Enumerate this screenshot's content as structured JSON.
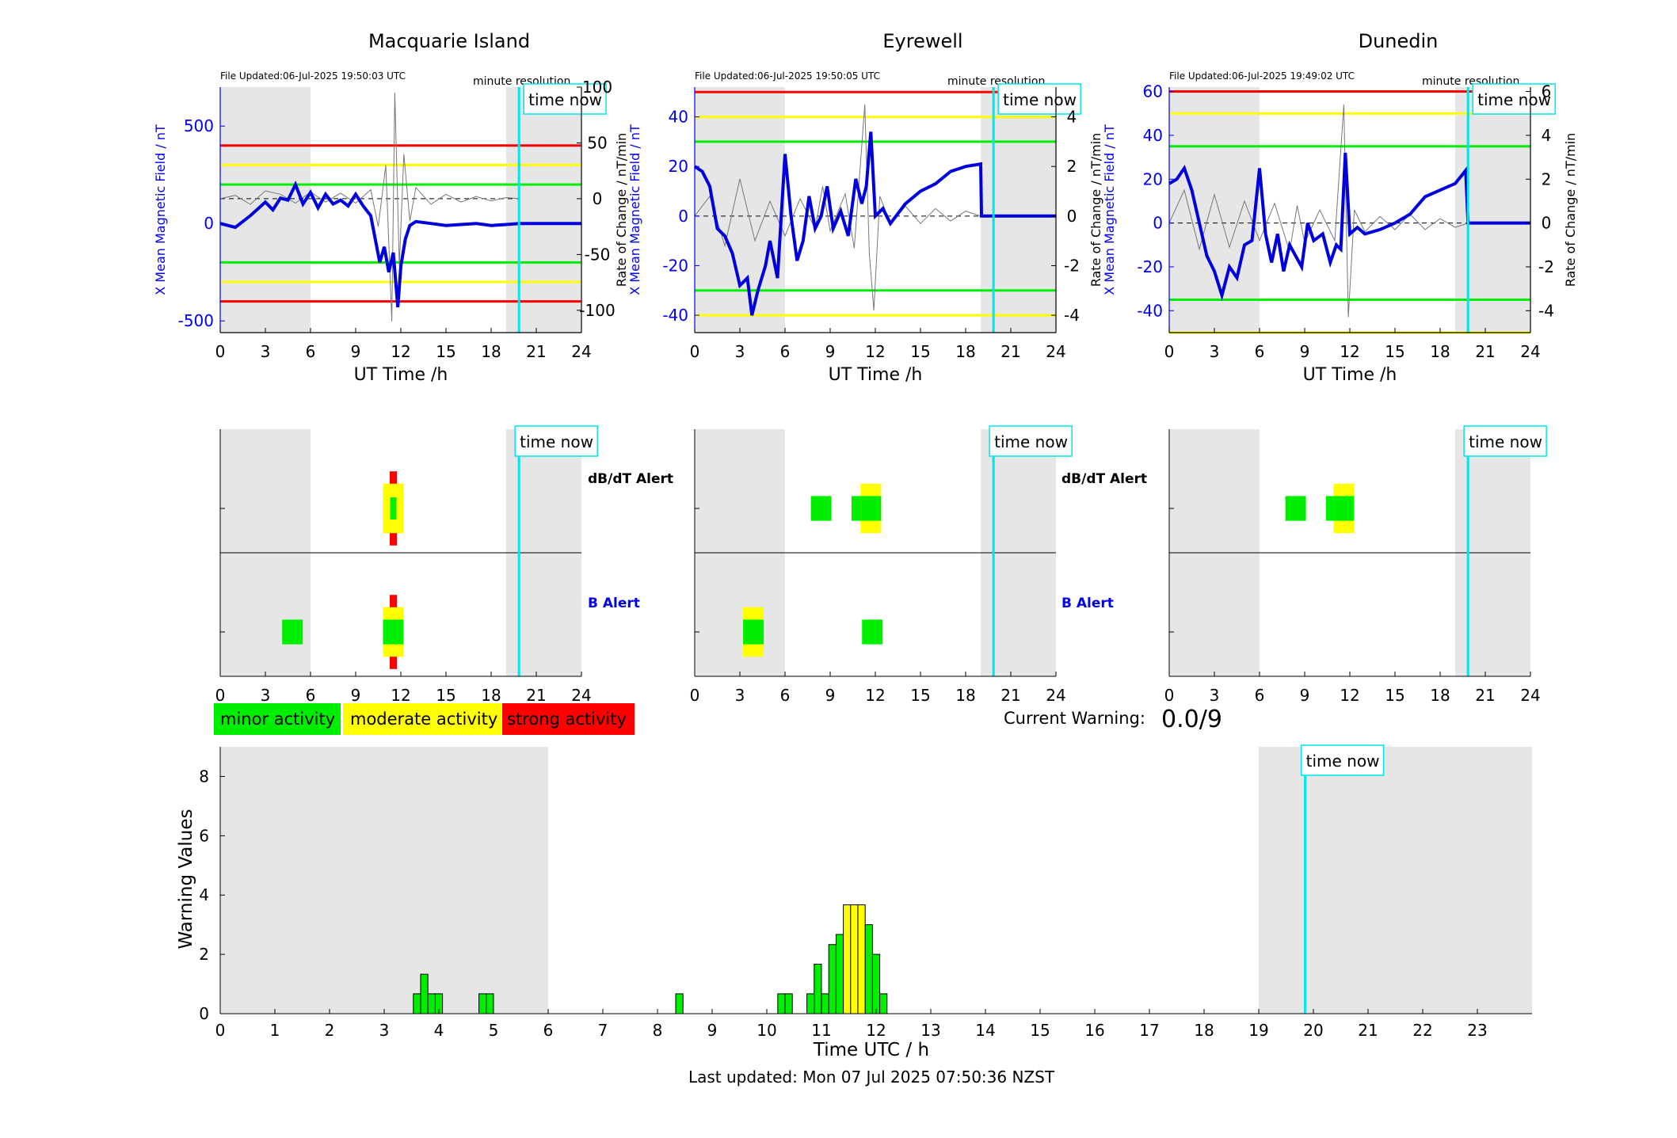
{
  "figure": {
    "time_now_label": "time now",
    "time_now_hour": 19.85,
    "current_warning_label": "Current Warning:",
    "current_warning_value": "0.0/9",
    "last_updated": "Last updated: Mon 07 Jul 2025 07:50:36 NZST",
    "colors": {
      "minor": "#00ee00",
      "moderate": "#ffff00",
      "strong": "#ff0000",
      "shade": "#e6e6e6",
      "time_now": "#00e5ee",
      "mean_line": "#0000dd"
    }
  },
  "legend": [
    {
      "label": "minor activity",
      "color": "#00ee00"
    },
    {
      "label": "moderate activity",
      "color": "#ffff00"
    },
    {
      "label": "strong activity",
      "color": "#ff0000"
    }
  ],
  "stations": [
    {
      "name": "Macquarie Island",
      "file_updated": "File Updated:06-Jul-2025 19:50:03 UTC",
      "resolution": "minute resolution",
      "ylabel_left": "X Mean Magnetic Field / nT",
      "ylabel_right": "Rate of Change / nT/min",
      "xlabel": "UT Time /h",
      "left_ticks": [
        "500",
        "0",
        "-500"
      ],
      "right_ticks": [
        "100",
        "50",
        "0",
        "-50",
        "-100"
      ],
      "ylim_left": [
        -560,
        700
      ],
      "ylim_right": [
        -120,
        100
      ],
      "shade_hours": [
        [
          0,
          6
        ],
        [
          19,
          24
        ]
      ],
      "shade_ylim": [
        -700,
        700
      ],
      "threshold_lines_nT": [
        {
          "value": 400,
          "color": "#ff0000"
        },
        {
          "value": 300,
          "color": "#ffff00"
        },
        {
          "value": 200,
          "color": "#00ee00"
        },
        {
          "value": -200,
          "color": "#00ee00"
        },
        {
          "value": -300,
          "color": "#ffff00"
        },
        {
          "value": -400,
          "color": "#ff0000"
        }
      ],
      "mean_field_nT": [
        [
          0,
          0
        ],
        [
          1,
          -20
        ],
        [
          2,
          40
        ],
        [
          3,
          110
        ],
        [
          3.5,
          70
        ],
        [
          4,
          130
        ],
        [
          4.5,
          120
        ],
        [
          5,
          200
        ],
        [
          5.5,
          100
        ],
        [
          6,
          160
        ],
        [
          6.5,
          80
        ],
        [
          7,
          150
        ],
        [
          7.5,
          100
        ],
        [
          8,
          120
        ],
        [
          8.5,
          90
        ],
        [
          9,
          150
        ],
        [
          9.5,
          90
        ],
        [
          10,
          40
        ],
        [
          10.3,
          -80
        ],
        [
          10.6,
          -200
        ],
        [
          10.9,
          -120
        ],
        [
          11.2,
          -250
        ],
        [
          11.5,
          -150
        ],
        [
          11.8,
          -430
        ],
        [
          12,
          -220
        ],
        [
          12.3,
          -80
        ],
        [
          12.6,
          -10
        ],
        [
          13,
          10
        ],
        [
          14,
          0
        ],
        [
          15,
          -10
        ],
        [
          17,
          0
        ],
        [
          18,
          -10
        ],
        [
          19,
          -5
        ],
        [
          19.85,
          0
        ],
        [
          24,
          0
        ]
      ],
      "rate_of_change": [
        [
          0,
          0
        ],
        [
          1,
          3
        ],
        [
          2,
          -5
        ],
        [
          3,
          7
        ],
        [
          4,
          4
        ],
        [
          5,
          -4
        ],
        [
          6,
          6
        ],
        [
          7,
          -3
        ],
        [
          8,
          5
        ],
        [
          9,
          -4
        ],
        [
          10,
          8
        ],
        [
          10.5,
          -25
        ],
        [
          11,
          30
        ],
        [
          11.4,
          -110
        ],
        [
          11.6,
          95
        ],
        [
          11.9,
          -60
        ],
        [
          12.2,
          40
        ],
        [
          12.6,
          -20
        ],
        [
          13,
          10
        ],
        [
          14,
          -5
        ],
        [
          15,
          4
        ],
        [
          16,
          -3
        ],
        [
          17,
          2
        ],
        [
          18,
          -2
        ],
        [
          19,
          1
        ],
        [
          19.85,
          0
        ]
      ],
      "dbdt_alert": [
        {
          "hour": 11.5,
          "level": "strong",
          "ymin": -0.6,
          "ymax": 0.6
        },
        {
          "hour": 11.5,
          "level": "moderate",
          "ymin": -0.4,
          "ymax": 0.4
        },
        {
          "hour": 11.5,
          "level": "minor",
          "ymin": -0.18,
          "ymax": 0.18
        }
      ],
      "b_alert": [
        {
          "hour": 4.8,
          "level": "minor",
          "ymin": -0.2,
          "ymax": 0.2
        },
        {
          "hour": 11.5,
          "level": "strong",
          "ymin": -0.6,
          "ymax": 0.6
        },
        {
          "hour": 11.5,
          "level": "moderate",
          "ymin": -0.4,
          "ymax": 0.4
        },
        {
          "hour": 11.5,
          "level": "minor",
          "ymin": -0.2,
          "ymax": 0.2
        }
      ]
    },
    {
      "name": "Eyrewell",
      "file_updated": "File Updated:06-Jul-2025 19:50:05 UTC",
      "resolution": "minute resolution",
      "ylabel_left": "X Mean Magnetic Field / nT",
      "ylabel_right": "Rate of Change / nT/min",
      "xlabel": "UT Time /h",
      "left_ticks": [
        "40",
        "20",
        "0",
        "-20",
        "-40"
      ],
      "right_ticks": [
        "4",
        "2",
        "0",
        "-2",
        "-4"
      ],
      "ylim_left": [
        -47,
        52
      ],
      "ylim_right": [
        -4.7,
        5.2
      ],
      "shade_hours": [
        [
          0,
          6
        ],
        [
          19,
          24
        ]
      ],
      "shade_ylim": [
        -47,
        52
      ],
      "threshold_lines_nT": [
        {
          "value": 50,
          "color": "#ff0000"
        },
        {
          "value": 40,
          "color": "#ffff00"
        },
        {
          "value": 30,
          "color": "#00ee00"
        },
        {
          "value": -30,
          "color": "#00ee00"
        },
        {
          "value": -40,
          "color": "#ffff00"
        }
      ],
      "mean_field_nT": [
        [
          0,
          20
        ],
        [
          0.5,
          18
        ],
        [
          1,
          12
        ],
        [
          1.5,
          -5
        ],
        [
          2,
          -8
        ],
        [
          2.5,
          -15
        ],
        [
          3,
          -28
        ],
        [
          3.5,
          -25
        ],
        [
          3.8,
          -40
        ],
        [
          4.2,
          -30
        ],
        [
          4.7,
          -20
        ],
        [
          5,
          -10
        ],
        [
          5.5,
          -25
        ],
        [
          6,
          25
        ],
        [
          6.4,
          0
        ],
        [
          6.8,
          -18
        ],
        [
          7.2,
          -10
        ],
        [
          7.6,
          8
        ],
        [
          8,
          -5
        ],
        [
          8.4,
          0
        ],
        [
          8.8,
          12
        ],
        [
          9.2,
          -5
        ],
        [
          9.7,
          2
        ],
        [
          10.2,
          -8
        ],
        [
          10.7,
          15
        ],
        [
          11.1,
          5
        ],
        [
          11.4,
          12
        ],
        [
          11.7,
          34
        ],
        [
          12,
          0
        ],
        [
          12.5,
          3
        ],
        [
          13,
          -3
        ],
        [
          14,
          5
        ],
        [
          15,
          10
        ],
        [
          16,
          13
        ],
        [
          17,
          18
        ],
        [
          18,
          20
        ],
        [
          19,
          21
        ],
        [
          19.05,
          0
        ],
        [
          24,
          0
        ]
      ],
      "rate_of_change": [
        [
          0,
          0
        ],
        [
          1,
          0.8
        ],
        [
          2,
          -1.2
        ],
        [
          3,
          1.5
        ],
        [
          4,
          -1
        ],
        [
          5,
          0.6
        ],
        [
          6,
          -0.8
        ],
        [
          7,
          0.7
        ],
        [
          8,
          -0.5
        ],
        [
          8.5,
          1.2
        ],
        [
          9,
          -0.6
        ],
        [
          10,
          0.9
        ],
        [
          10.6,
          -1.3
        ],
        [
          11.3,
          4.5
        ],
        [
          11.6,
          -1.5
        ],
        [
          11.9,
          -3.8
        ],
        [
          12.3,
          0.8
        ],
        [
          13,
          -0.3
        ],
        [
          14,
          0.4
        ],
        [
          15,
          -0.3
        ],
        [
          16,
          0.3
        ],
        [
          17,
          -0.2
        ],
        [
          18,
          0.2
        ],
        [
          19,
          0
        ]
      ],
      "dbdt_alert": [
        {
          "hour": 8.4,
          "level": "minor",
          "ymin": -0.2,
          "ymax": 0.2
        },
        {
          "hour": 11.1,
          "level": "minor",
          "ymin": -0.2,
          "ymax": 0.2
        },
        {
          "hour": 11.7,
          "level": "moderate",
          "ymin": -0.4,
          "ymax": 0.4
        },
        {
          "hour": 11.7,
          "level": "minor",
          "ymin": -0.2,
          "ymax": 0.2
        }
      ],
      "b_alert": [
        {
          "hour": 3.9,
          "level": "moderate",
          "ymin": -0.4,
          "ymax": 0.4
        },
        {
          "hour": 3.9,
          "level": "minor",
          "ymin": -0.2,
          "ymax": 0.2
        },
        {
          "hour": 11.8,
          "level": "minor",
          "ymin": -0.2,
          "ymax": 0.2
        }
      ]
    },
    {
      "name": "Dunedin",
      "file_updated": "File Updated:06-Jul-2025 19:49:02 UTC",
      "resolution": "minute resolution",
      "ylabel_left": "X Mean Magnetic Field / nT",
      "ylabel_right": "Rate of Change / nT/min",
      "xlabel": "UT Time /h",
      "left_ticks": [
        "60",
        "40",
        "20",
        "0",
        "-20",
        "-40"
      ],
      "right_ticks": [
        "6",
        "4",
        "2",
        "0",
        "-2",
        "-4"
      ],
      "ylim_left": [
        -50,
        62
      ],
      "ylim_right": [
        -5,
        6.2
      ],
      "shade_hours": [
        [
          0,
          6
        ],
        [
          19,
          24
        ]
      ],
      "shade_ylim": [
        -50,
        62
      ],
      "threshold_lines_nT": [
        {
          "value": 60,
          "color": "#ff0000"
        },
        {
          "value": 50,
          "color": "#ffff00"
        },
        {
          "value": 35,
          "color": "#00ee00"
        },
        {
          "value": -35,
          "color": "#00ee00"
        },
        {
          "value": -50,
          "color": "#ffff00"
        }
      ],
      "mean_field_nT": [
        [
          0,
          18
        ],
        [
          0.5,
          20
        ],
        [
          1,
          25
        ],
        [
          1.5,
          15
        ],
        [
          2,
          0
        ],
        [
          2.5,
          -15
        ],
        [
          3,
          -22
        ],
        [
          3.5,
          -33
        ],
        [
          4,
          -20
        ],
        [
          4.5,
          -25
        ],
        [
          5,
          -10
        ],
        [
          5.5,
          -8
        ],
        [
          6,
          25
        ],
        [
          6.4,
          -5
        ],
        [
          6.8,
          -18
        ],
        [
          7.2,
          -5
        ],
        [
          7.6,
          -22
        ],
        [
          8,
          -10
        ],
        [
          8.4,
          -15
        ],
        [
          8.8,
          -20
        ],
        [
          9.2,
          0
        ],
        [
          9.6,
          -8
        ],
        [
          10.2,
          -5
        ],
        [
          10.7,
          -18
        ],
        [
          11.1,
          -10
        ],
        [
          11.4,
          -12
        ],
        [
          11.7,
          32
        ],
        [
          12,
          -5
        ],
        [
          12.5,
          -2
        ],
        [
          13,
          -5
        ],
        [
          14,
          -3
        ],
        [
          15,
          0
        ],
        [
          16,
          4
        ],
        [
          17,
          12
        ],
        [
          18,
          15
        ],
        [
          19,
          18
        ],
        [
          19.7,
          24
        ],
        [
          19.85,
          0
        ],
        [
          24,
          0
        ]
      ],
      "rate_of_change": [
        [
          0,
          0
        ],
        [
          1,
          1.5
        ],
        [
          2,
          -1.2
        ],
        [
          3,
          1.3
        ],
        [
          4,
          -1.1
        ],
        [
          5,
          1
        ],
        [
          6,
          -0.8
        ],
        [
          7,
          0.9
        ],
        [
          8,
          -1.3
        ],
        [
          8.5,
          0.8
        ],
        [
          9,
          -0.9
        ],
        [
          10,
          0.6
        ],
        [
          11,
          -0.8
        ],
        [
          11.6,
          5.4
        ],
        [
          11.9,
          -4.3
        ],
        [
          12.3,
          0.6
        ],
        [
          13,
          -0.4
        ],
        [
          14,
          0.3
        ],
        [
          15,
          -0.3
        ],
        [
          16,
          0.4
        ],
        [
          17,
          -0.3
        ],
        [
          18,
          0.2
        ],
        [
          19,
          -0.2
        ],
        [
          19.85,
          0
        ]
      ],
      "dbdt_alert": [
        {
          "hour": 8.4,
          "level": "minor",
          "ymin": -0.2,
          "ymax": 0.2
        },
        {
          "hour": 11.1,
          "level": "minor",
          "ymin": -0.2,
          "ymax": 0.2
        },
        {
          "hour": 11.6,
          "level": "moderate",
          "ymin": -0.4,
          "ymax": 0.4
        },
        {
          "hour": 11.6,
          "level": "minor",
          "ymin": -0.2,
          "ymax": 0.2
        }
      ],
      "b_alert": []
    }
  ],
  "alert_labels": {
    "dbdt": "dB/dT Alert",
    "b": "B Alert"
  },
  "x_ticks_station": [
    "0",
    "3",
    "6",
    "9",
    "12",
    "15",
    "18",
    "21",
    "24"
  ],
  "chart_data": {
    "type": "bar",
    "xlabel": "Time UTC / h",
    "ylabel": "Warning Values",
    "xlim": [
      0,
      24
    ],
    "ylim": [
      0,
      9
    ],
    "x_ticks": [
      "0",
      "1",
      "2",
      "3",
      "4",
      "5",
      "6",
      "7",
      "8",
      "9",
      "10",
      "11",
      "12",
      "13",
      "14",
      "15",
      "16",
      "17",
      "18",
      "19",
      "20",
      "21",
      "22",
      "23"
    ],
    "y_ticks": [
      "0",
      "2",
      "4",
      "6",
      "8"
    ],
    "shade_hours": [
      [
        0,
        6
      ],
      [
        19,
        24
      ]
    ],
    "bar_width_hours": 0.1333,
    "bars": [
      {
        "x": 3.6,
        "value": 0.67,
        "level": "minor"
      },
      {
        "x": 3.733,
        "value": 1.33,
        "level": "minor"
      },
      {
        "x": 3.867,
        "value": 0.67,
        "level": "minor"
      },
      {
        "x": 4.0,
        "value": 0.67,
        "level": "minor"
      },
      {
        "x": 4.8,
        "value": 0.67,
        "level": "minor"
      },
      {
        "x": 4.933,
        "value": 0.67,
        "level": "minor"
      },
      {
        "x": 8.4,
        "value": 0.67,
        "level": "minor"
      },
      {
        "x": 10.267,
        "value": 0.67,
        "level": "minor"
      },
      {
        "x": 10.4,
        "value": 0.67,
        "level": "minor"
      },
      {
        "x": 10.8,
        "value": 0.67,
        "level": "minor"
      },
      {
        "x": 10.933,
        "value": 1.67,
        "level": "minor"
      },
      {
        "x": 11.067,
        "value": 0.67,
        "level": "minor"
      },
      {
        "x": 11.2,
        "value": 2.33,
        "level": "minor"
      },
      {
        "x": 11.333,
        "value": 2.67,
        "level": "minor"
      },
      {
        "x": 11.467,
        "value": 3.67,
        "level": "moderate"
      },
      {
        "x": 11.6,
        "value": 3.67,
        "level": "moderate"
      },
      {
        "x": 11.733,
        "value": 3.67,
        "level": "moderate"
      },
      {
        "x": 11.867,
        "value": 3.0,
        "level": "minor"
      },
      {
        "x": 12.0,
        "value": 2.0,
        "level": "minor"
      },
      {
        "x": 12.133,
        "value": 0.67,
        "level": "minor"
      }
    ]
  }
}
